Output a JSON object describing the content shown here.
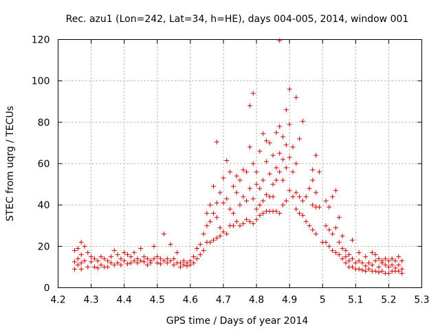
{
  "chart_data": {
    "type": "scatter",
    "title": "Rec. azu1 (Lon=242, Lat=34, h=HE), days 004-005, 2014, window 001",
    "xlabel": "GPS time / Days of year 2014",
    "ylabel": "STEC from uqrg / TECUs",
    "xlim": [
      4.2,
      5.3
    ],
    "ylim": [
      0,
      120
    ],
    "x_ticks": [
      4.2,
      4.3,
      4.4,
      4.5,
      4.6,
      4.7,
      4.8,
      4.9,
      5.0,
      5.1,
      5.2,
      5.3
    ],
    "x_tick_labels": [
      "4.2",
      "4.3",
      "4.4",
      "4.5",
      "4.6",
      "4.7",
      "4.8",
      "4.9",
      "5",
      "5.1",
      "5.2",
      "5.3"
    ],
    "y_ticks": [
      0,
      20,
      40,
      60,
      80,
      100,
      120
    ],
    "y_tick_labels": [
      "0",
      "20",
      "40",
      "60",
      "80",
      "100",
      "120"
    ],
    "grid": true,
    "marker": "+",
    "marker_color": "#cc0000",
    "series": [
      {
        "name": "STEC",
        "points": [
          [
            4.25,
            18
          ],
          [
            4.25,
            12.5
          ],
          [
            4.25,
            9
          ],
          [
            4.26,
            19
          ],
          [
            4.26,
            14
          ],
          [
            4.26,
            11
          ],
          [
            4.27,
            22
          ],
          [
            4.27,
            16
          ],
          [
            4.27,
            12
          ],
          [
            4.27,
            9
          ],
          [
            4.28,
            20
          ],
          [
            4.28,
            13
          ],
          [
            4.29,
            17
          ],
          [
            4.29,
            10
          ],
          [
            4.3,
            15
          ],
          [
            4.3,
            12.5
          ],
          [
            4.31,
            14
          ],
          [
            4.31,
            10
          ],
          [
            4.32,
            13
          ],
          [
            4.32,
            9.5
          ],
          [
            4.33,
            15
          ],
          [
            4.33,
            11
          ],
          [
            4.34,
            14
          ],
          [
            4.34,
            10
          ],
          [
            4.35,
            13
          ],
          [
            4.35,
            10
          ],
          [
            4.36,
            15
          ],
          [
            4.36,
            12
          ],
          [
            4.37,
            18
          ],
          [
            4.37,
            11
          ],
          [
            4.38,
            16
          ],
          [
            4.38,
            12
          ],
          [
            4.39,
            14
          ],
          [
            4.39,
            11
          ],
          [
            4.4,
            17
          ],
          [
            4.4,
            13
          ],
          [
            4.41,
            16
          ],
          [
            4.41,
            11.5
          ],
          [
            4.42,
            15
          ],
          [
            4.42,
            12
          ],
          [
            4.43,
            17
          ],
          [
            4.43,
            13
          ],
          [
            4.44,
            14
          ],
          [
            4.44,
            12
          ],
          [
            4.45,
            19
          ],
          [
            4.45,
            13
          ],
          [
            4.46,
            15
          ],
          [
            4.46,
            12.5
          ],
          [
            4.47,
            14
          ],
          [
            4.47,
            11
          ],
          [
            4.48,
            13
          ],
          [
            4.48,
            12
          ],
          [
            4.49,
            20
          ],
          [
            4.49,
            14
          ],
          [
            4.5,
            15
          ],
          [
            4.5,
            12
          ],
          [
            4.51,
            14
          ],
          [
            4.51,
            11.5
          ],
          [
            4.52,
            26
          ],
          [
            4.52,
            13
          ],
          [
            4.53,
            14
          ],
          [
            4.53,
            12
          ],
          [
            4.54,
            21
          ],
          [
            4.54,
            13
          ],
          [
            4.55,
            14
          ],
          [
            4.55,
            11
          ],
          [
            4.56,
            17
          ],
          [
            4.56,
            12
          ],
          [
            4.57,
            12
          ],
          [
            4.57,
            10
          ],
          [
            4.58,
            13
          ],
          [
            4.58,
            11
          ],
          [
            4.59,
            12
          ],
          [
            4.59,
            10.5
          ],
          [
            4.6,
            13
          ],
          [
            4.6,
            11
          ],
          [
            4.61,
            15
          ],
          [
            4.61,
            12
          ],
          [
            4.62,
            19
          ],
          [
            4.62,
            14
          ],
          [
            4.63,
            21
          ],
          [
            4.63,
            16
          ],
          [
            4.64,
            26
          ],
          [
            4.64,
            18
          ],
          [
            4.65,
            36
          ],
          [
            4.65,
            30
          ],
          [
            4.65,
            22
          ],
          [
            4.66,
            40
          ],
          [
            4.66,
            32
          ],
          [
            4.66,
            22
          ],
          [
            4.67,
            49
          ],
          [
            4.67,
            36
          ],
          [
            4.67,
            23
          ],
          [
            4.68,
            70.5
          ],
          [
            4.68,
            41
          ],
          [
            4.68,
            34
          ],
          [
            4.68,
            24
          ],
          [
            4.69,
            46
          ],
          [
            4.69,
            29
          ],
          [
            4.69,
            25
          ],
          [
            4.7,
            53
          ],
          [
            4.7,
            41
          ],
          [
            4.7,
            27
          ],
          [
            4.71,
            61.5
          ],
          [
            4.71,
            43
          ],
          [
            4.71,
            26
          ],
          [
            4.72,
            56
          ],
          [
            4.72,
            38
          ],
          [
            4.72,
            30
          ],
          [
            4.73,
            49
          ],
          [
            4.73,
            36
          ],
          [
            4.73,
            30
          ],
          [
            4.74,
            54
          ],
          [
            4.74,
            46
          ],
          [
            4.74,
            32
          ],
          [
            4.75,
            52
          ],
          [
            4.75,
            40
          ],
          [
            4.75,
            30
          ],
          [
            4.76,
            57
          ],
          [
            4.76,
            44
          ],
          [
            4.76,
            31
          ],
          [
            4.77,
            56
          ],
          [
            4.77,
            42
          ],
          [
            4.77,
            33
          ],
          [
            4.78,
            88
          ],
          [
            4.78,
            68
          ],
          [
            4.78,
            48
          ],
          [
            4.78,
            32
          ],
          [
            4.79,
            94
          ],
          [
            4.79,
            60
          ],
          [
            4.79,
            43
          ],
          [
            4.79,
            31
          ],
          [
            4.8,
            56
          ],
          [
            4.8,
            50
          ],
          [
            4.8,
            38
          ],
          [
            4.8,
            33
          ],
          [
            4.81,
            66
          ],
          [
            4.81,
            48
          ],
          [
            4.81,
            40
          ],
          [
            4.81,
            35
          ],
          [
            4.82,
            74.5
          ],
          [
            4.82,
            52
          ],
          [
            4.82,
            42
          ],
          [
            4.82,
            36
          ],
          [
            4.83,
            71
          ],
          [
            4.83,
            61
          ],
          [
            4.83,
            45
          ],
          [
            4.83,
            37
          ],
          [
            4.84,
            70
          ],
          [
            4.84,
            55
          ],
          [
            4.84,
            44
          ],
          [
            4.84,
            37
          ],
          [
            4.85,
            64
          ],
          [
            4.85,
            50
          ],
          [
            4.85,
            44
          ],
          [
            4.85,
            37
          ],
          [
            4.86,
            75
          ],
          [
            4.86,
            58
          ],
          [
            4.86,
            52
          ],
          [
            4.86,
            37
          ],
          [
            4.87,
            119.5
          ],
          [
            4.87,
            78
          ],
          [
            4.87,
            65
          ],
          [
            4.87,
            56
          ],
          [
            4.87,
            36
          ],
          [
            4.88,
            73
          ],
          [
            4.88,
            62
          ],
          [
            4.88,
            52
          ],
          [
            4.88,
            40
          ],
          [
            4.89,
            86
          ],
          [
            4.89,
            69
          ],
          [
            4.89,
            58
          ],
          [
            4.89,
            42
          ],
          [
            4.9,
            96
          ],
          [
            4.9,
            79
          ],
          [
            4.9,
            63
          ],
          [
            4.9,
            47
          ],
          [
            4.91,
            68
          ],
          [
            4.91,
            56
          ],
          [
            4.91,
            44
          ],
          [
            4.92,
            92
          ],
          [
            4.92,
            60
          ],
          [
            4.92,
            46
          ],
          [
            4.92,
            38
          ],
          [
            4.93,
            72
          ],
          [
            4.93,
            44
          ],
          [
            4.93,
            36
          ],
          [
            4.94,
            80.5
          ],
          [
            4.94,
            42
          ],
          [
            4.94,
            35
          ],
          [
            4.95,
            44
          ],
          [
            4.95,
            32
          ],
          [
            4.96,
            48
          ],
          [
            4.96,
            30
          ],
          [
            4.97,
            57
          ],
          [
            4.97,
            52
          ],
          [
            4.97,
            40
          ],
          [
            4.97,
            28
          ],
          [
            4.98,
            64
          ],
          [
            4.98,
            46
          ],
          [
            4.98,
            39
          ],
          [
            4.98,
            26
          ],
          [
            4.99,
            56
          ],
          [
            4.99,
            39
          ],
          [
            5.0,
            22
          ],
          [
            5.01,
            42
          ],
          [
            5.01,
            30
          ],
          [
            5.01,
            22
          ],
          [
            5.02,
            39
          ],
          [
            5.02,
            28
          ],
          [
            5.02,
            20
          ],
          [
            5.03,
            44
          ],
          [
            5.03,
            26
          ],
          [
            5.03,
            18
          ],
          [
            5.04,
            47
          ],
          [
            5.04,
            29
          ],
          [
            5.04,
            17
          ],
          [
            5.05,
            34
          ],
          [
            5.05,
            22
          ],
          [
            5.05,
            16
          ],
          [
            5.06,
            25
          ],
          [
            5.06,
            19
          ],
          [
            5.06,
            14
          ],
          [
            5.07,
            18
          ],
          [
            5.07,
            15
          ],
          [
            5.07,
            12
          ],
          [
            5.08,
            16
          ],
          [
            5.08,
            13
          ],
          [
            5.08,
            10
          ],
          [
            5.09,
            23
          ],
          [
            5.09,
            14
          ],
          [
            5.09,
            10
          ],
          [
            5.1,
            12
          ],
          [
            5.1,
            9
          ],
          [
            5.11,
            17
          ],
          [
            5.11,
            13
          ],
          [
            5.11,
            9
          ],
          [
            5.12,
            12
          ],
          [
            5.12,
            8.5
          ],
          [
            5.13,
            15
          ],
          [
            5.13,
            10.5
          ],
          [
            5.13,
            8
          ],
          [
            5.14,
            12
          ],
          [
            5.14,
            9
          ],
          [
            5.15,
            17
          ],
          [
            5.15,
            11
          ],
          [
            5.15,
            8
          ],
          [
            5.16,
            16
          ],
          [
            5.16,
            13
          ],
          [
            5.16,
            8
          ],
          [
            5.17,
            14
          ],
          [
            5.17,
            10
          ],
          [
            5.17,
            7.5
          ],
          [
            5.18,
            13
          ],
          [
            5.18,
            12
          ],
          [
            5.18,
            8
          ],
          [
            5.19,
            14
          ],
          [
            5.19,
            11
          ],
          [
            5.19,
            7
          ],
          [
            5.2,
            13
          ],
          [
            5.2,
            10
          ],
          [
            5.2,
            7
          ],
          [
            5.21,
            14
          ],
          [
            5.21,
            11
          ],
          [
            5.21,
            8
          ],
          [
            5.22,
            13
          ],
          [
            5.22,
            9.5
          ],
          [
            5.22,
            8
          ],
          [
            5.23,
            15
          ],
          [
            5.23,
            11
          ],
          [
            5.23,
            8
          ],
          [
            5.24,
            13
          ],
          [
            5.24,
            9
          ],
          [
            5.24,
            7
          ]
        ]
      }
    ]
  }
}
